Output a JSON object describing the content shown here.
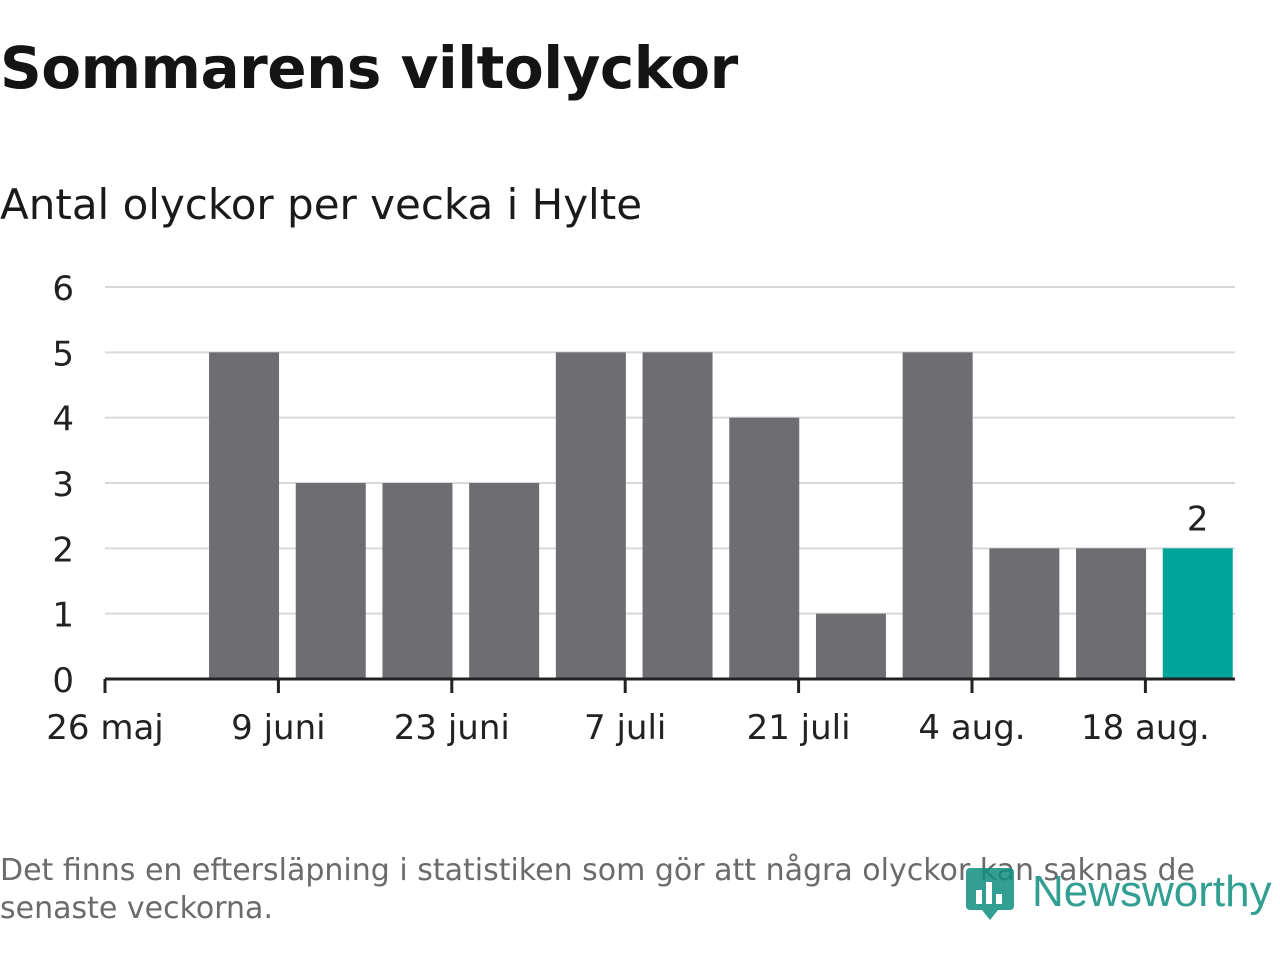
{
  "title": "Sommarens viltolyckor",
  "subtitle": "Antal olyckor per vecka i Hylte",
  "footnote": "Det finns en eftersläpning i statistiken som gör att några olyckor kan saknas de senaste veckorna.",
  "brand": {
    "name": "Newsworthy",
    "icon": "newsworthy-logo-icon",
    "color": "#0f8f80"
  },
  "colors": {
    "bar": "#6e6d72",
    "highlight": "#00a59a",
    "grid": "#d9d9d9",
    "axis": "#222222"
  },
  "chart_data": {
    "type": "bar",
    "weeks": [
      "2024-05-26",
      "2024-06-02",
      "2024-06-09",
      "2024-06-16",
      "2024-06-23",
      "2024-06-30",
      "2024-07-07",
      "2024-07-14",
      "2024-07-21",
      "2024-07-28",
      "2024-08-04",
      "2024-08-11",
      "2024-08-18"
    ],
    "values": [
      null,
      5,
      3,
      3,
      3,
      5,
      5,
      4,
      1,
      5,
      2,
      2,
      2
    ],
    "x_tick_labels": [
      "26 maj",
      "9 juni",
      "23 juni",
      "7 juli",
      "21 juli",
      "4 aug.",
      "18 aug."
    ],
    "x_tick_dates": [
      "2024-05-26",
      "2024-06-09",
      "2024-06-23",
      "2024-07-07",
      "2024-07-21",
      "2024-08-04",
      "2024-08-18"
    ],
    "y_ticks": [
      0,
      1,
      2,
      3,
      4,
      5,
      6
    ],
    "ylim": [
      0,
      6
    ],
    "grid": true,
    "highlight_last": true,
    "data_labels": [
      {
        "week": "2024-08-18",
        "label": "2"
      }
    ]
  }
}
